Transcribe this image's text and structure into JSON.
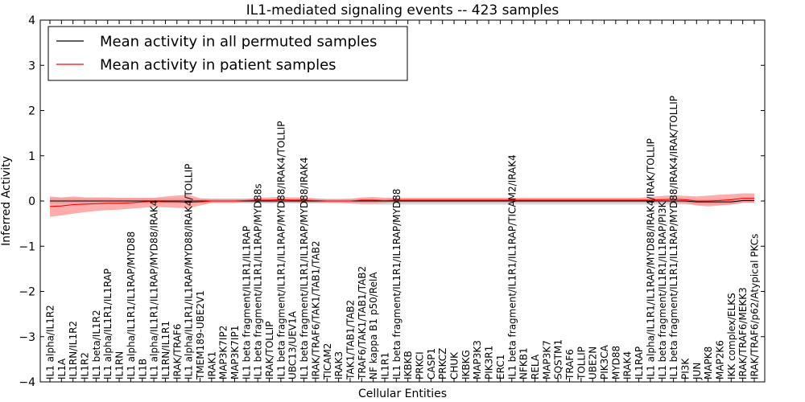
{
  "chart_data": {
    "type": "line",
    "title": "IL1-mediated signaling events -- 423 samples",
    "xlabel": "Cellular Entities",
    "ylabel": "Inferred Activity",
    "ylim": [
      -4,
      4
    ],
    "yticks": [
      -4,
      -3,
      -2,
      -1,
      0,
      1,
      2,
      3,
      4
    ],
    "ytick_labels": [
      "−4",
      "−3",
      "−2",
      "−1",
      "0",
      "1",
      "2",
      "3",
      "4"
    ],
    "legend_position": "top-left",
    "categories": [
      "IL1 alpha/IL1R2",
      "IL1A",
      "IL1RN/IL1R2",
      "IL1R2",
      "IL1 beta/IL1R2",
      "IL1 alpha/IL1R1/IL1RAP",
      "IL1RN",
      "IL1 alpha/IL1R1/IL1RAP/MYD88",
      "IL1B",
      "IL1 alpha/IL1R1/IL1RAP/MYD88/IRAK4",
      "IL1RN/IL1R1",
      "IRAK/TRAF6",
      "IL1 alpha/IL1R1/IL1RAP/MYD88/IRAK4/TOLLIP",
      "TMEM189-UBE2V1",
      "IRAK1",
      "MAP3K7IP2",
      "MAP3K7IP1",
      "IL1 beta fragment/IL1R1/IL1RAP",
      "IL1 beta fragment/IL1R1/IL1RAP/MYD88s",
      "IRAK/TOLLIP",
      "IL1 beta fragment/IL1R1/IL1RAP/MYD88/IRAK4/TOLLIP",
      "UBC13/UEV1A",
      "IL1 beta fragment/IL1R1/IL1RAP/MYD88/IRAK4",
      "IRAK/TRAF6/TAK1/TAB1/TAB2",
      "TICAM2",
      "IRAK3",
      "TAK1/TAB1/TAB2",
      "TRAF6/TAK1/TAB1/TAB2",
      "NF kappa B1 p50/RelA",
      "IL1R1",
      "IL1 beta fragment/IL1R1/IL1RAP/MYD88",
      "IKBKB",
      "PRKCI",
      "CASP1",
      "PRKCZ",
      "CHUK",
      "IKBKG",
      "MAP3K3",
      "PIK3R1",
      "ERC1",
      "IL1 beta fragment/IL1R1/IL1RAP/TICAM2/IRAK4",
      "NFKB1",
      "RELA",
      "MAP3K7",
      "SQSTM1",
      "TRAF6",
      "TOLLIP",
      "UBE2N",
      "PIK3CA",
      "MYD88",
      "IRAK4",
      "IL1RAP",
      "IL1 alpha/IL1R1/IL1RAP/MYD88/IRAK4/IRAK/TOLLIP",
      "IL1 beta fragment/IL1R1/IL1RAP/PI3K",
      "IL1 beta fragment/IL1R1/IL1RAP/MYD88/IRAK4/IRAK/TOLLIP",
      "PI3K",
      "JUN",
      "MAPK8",
      "MAP2K6",
      "IKK complex/ELKS",
      "IRAK/TRAF6/MEKK3",
      "IRAK/TRAF6/p62/Atypical PKCs"
    ],
    "series": [
      {
        "name": "Mean activity in all permuted samples",
        "color": "#000000",
        "band_color": "#c8c8c8",
        "values": [
          0.0,
          0.0,
          0.0,
          0.0,
          0.0,
          0.0,
          0.0,
          0.0,
          0.0,
          0.0,
          0.0,
          0.0,
          0.0,
          0.0,
          0.0,
          0.0,
          0.0,
          0.0,
          0.0,
          0.0,
          0.0,
          0.0,
          0.0,
          0.0,
          0.0,
          0.0,
          0.0,
          0.0,
          0.0,
          0.0,
          0.0,
          0.0,
          0.0,
          0.0,
          0.0,
          0.0,
          0.0,
          0.0,
          0.0,
          0.0,
          0.0,
          0.0,
          0.0,
          0.0,
          0.0,
          0.0,
          0.0,
          0.0,
          0.0,
          0.0,
          0.0,
          0.0,
          0.0,
          0.0,
          0.0,
          0.0,
          -0.02,
          -0.02,
          -0.02,
          -0.02,
          0.01,
          0.01
        ],
        "band_upper": [
          0.06,
          0.06,
          0.06,
          0.06,
          0.06,
          0.06,
          0.06,
          0.06,
          0.06,
          0.06,
          0.06,
          0.06,
          0.05,
          0.05,
          0.05,
          0.05,
          0.05,
          0.05,
          0.05,
          0.05,
          0.05,
          0.05,
          0.05,
          0.05,
          0.05,
          0.05,
          0.05,
          0.05,
          0.05,
          0.05,
          0.05,
          0.05,
          0.05,
          0.05,
          0.05,
          0.05,
          0.05,
          0.05,
          0.05,
          0.05,
          0.05,
          0.05,
          0.05,
          0.05,
          0.05,
          0.05,
          0.05,
          0.05,
          0.05,
          0.05,
          0.05,
          0.05,
          0.05,
          0.05,
          0.05,
          0.05,
          0.04,
          0.04,
          0.04,
          0.04,
          0.06,
          0.06
        ],
        "band_lower": [
          -0.06,
          -0.06,
          -0.06,
          -0.06,
          -0.06,
          -0.06,
          -0.06,
          -0.06,
          -0.06,
          -0.06,
          -0.06,
          -0.06,
          -0.05,
          -0.05,
          -0.05,
          -0.05,
          -0.05,
          -0.05,
          -0.05,
          -0.05,
          -0.05,
          -0.05,
          -0.05,
          -0.05,
          -0.05,
          -0.05,
          -0.05,
          -0.08,
          -0.08,
          -0.08,
          -0.08,
          -0.08,
          -0.08,
          -0.08,
          -0.08,
          -0.08,
          -0.08,
          -0.08,
          -0.08,
          -0.08,
          -0.08,
          -0.08,
          -0.08,
          -0.08,
          -0.08,
          -0.08,
          -0.08,
          -0.08,
          -0.08,
          -0.08,
          -0.08,
          -0.08,
          -0.08,
          -0.08,
          -0.08,
          -0.08,
          -0.08,
          -0.08,
          -0.08,
          -0.08,
          -0.04,
          -0.04
        ]
      },
      {
        "name": "Mean activity in patient samples",
        "color": "#ff0000",
        "band_color": "#ff7f7f",
        "values": [
          -0.12,
          -0.11,
          -0.08,
          -0.07,
          -0.06,
          -0.05,
          -0.05,
          -0.04,
          -0.02,
          -0.01,
          -0.02,
          -0.02,
          -0.03,
          -0.02,
          0.0,
          0.0,
          0.0,
          0.01,
          0.02,
          0.02,
          0.03,
          0.02,
          0.02,
          0.01,
          0.0,
          0.0,
          0.0,
          0.02,
          0.02,
          0.01,
          0.02,
          0.02,
          0.02,
          0.02,
          0.02,
          0.02,
          0.02,
          0.02,
          0.02,
          0.02,
          0.02,
          0.02,
          0.02,
          0.02,
          0.02,
          0.02,
          0.02,
          0.02,
          0.02,
          0.02,
          0.02,
          0.02,
          0.02,
          0.03,
          0.04,
          0.03,
          0.0,
          0.0,
          0.01,
          0.03,
          0.06,
          0.06
        ],
        "band_upper": [
          0.1,
          0.08,
          0.1,
          0.08,
          0.08,
          0.08,
          0.07,
          0.07,
          0.07,
          0.07,
          0.1,
          0.12,
          0.14,
          0.06,
          0.05,
          0.05,
          0.05,
          0.05,
          0.07,
          0.08,
          0.09,
          0.08,
          0.08,
          0.06,
          0.04,
          0.04,
          0.05,
          0.08,
          0.09,
          0.07,
          0.07,
          0.07,
          0.07,
          0.07,
          0.07,
          0.07,
          0.07,
          0.07,
          0.07,
          0.07,
          0.07,
          0.07,
          0.07,
          0.07,
          0.07,
          0.07,
          0.07,
          0.07,
          0.07,
          0.07,
          0.07,
          0.07,
          0.09,
          0.11,
          0.13,
          0.11,
          0.1,
          0.12,
          0.14,
          0.15,
          0.17,
          0.17
        ],
        "band_lower": [
          -0.35,
          -0.32,
          -0.28,
          -0.25,
          -0.22,
          -0.2,
          -0.19,
          -0.17,
          -0.15,
          -0.13,
          -0.14,
          -0.15,
          -0.16,
          -0.1,
          -0.04,
          -0.04,
          -0.04,
          -0.03,
          -0.03,
          -0.04,
          -0.03,
          -0.04,
          -0.04,
          -0.04,
          -0.04,
          -0.04,
          -0.05,
          -0.05,
          -0.05,
          -0.04,
          -0.03,
          -0.03,
          -0.03,
          -0.03,
          -0.03,
          -0.03,
          -0.03,
          -0.03,
          -0.03,
          -0.03,
          -0.03,
          -0.03,
          -0.03,
          -0.03,
          -0.03,
          -0.03,
          -0.03,
          -0.03,
          -0.03,
          -0.03,
          -0.03,
          -0.03,
          -0.03,
          -0.04,
          -0.04,
          -0.05,
          -0.1,
          -0.12,
          -0.1,
          -0.08,
          -0.04,
          -0.04
        ]
      }
    ]
  }
}
